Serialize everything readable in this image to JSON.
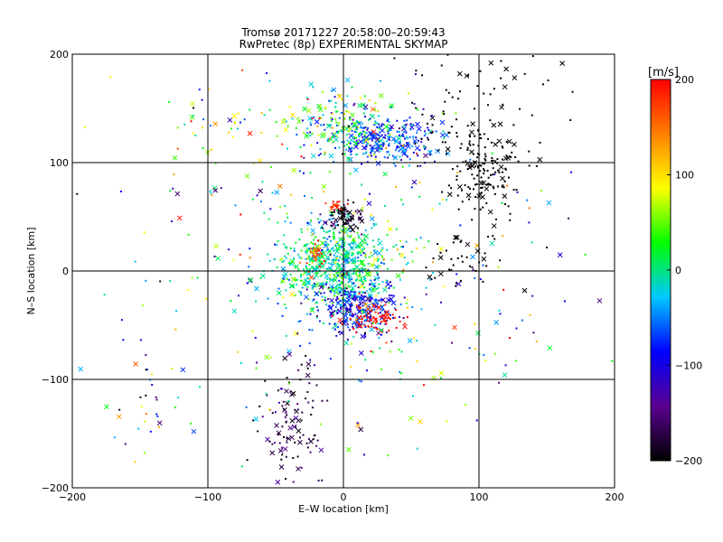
{
  "chart_data": {
    "type": "scatter",
    "title": "Tromsø 20171227 20:58:00–20:59:43",
    "subtitle": "RwPretec (8p) EXPERIMENTAL SKYMAP",
    "xlabel": "E–W location [km]",
    "ylabel": "N–S location [km]",
    "xlim": [
      -200,
      200
    ],
    "ylim": [
      -200,
      200
    ],
    "xticks": [
      -200,
      -100,
      0,
      100,
      200
    ],
    "yticks": [
      -200,
      -100,
      0,
      100,
      200
    ],
    "grid": true,
    "colorbar": {
      "title": "[m/s]",
      "range": [
        -200,
        200
      ],
      "ticks": [
        -200,
        -100,
        0,
        100,
        200
      ],
      "colormap": [
        "#000000",
        "#5a0090",
        "#0000ff",
        "#00c8ff",
        "#00ff00",
        "#ffff00",
        "#ff8000",
        "#ff0000"
      ]
    },
    "markers": {
      "dot": "point",
      "cross": "x"
    },
    "clusters": [
      {
        "cx": -5,
        "cy": 5,
        "sx": 20,
        "sy": 20,
        "n": 650,
        "vel": 0,
        "vsd": 35
      },
      {
        "cx": 30,
        "cy": 120,
        "sx": 22,
        "sy": 12,
        "n": 280,
        "vel": -70,
        "vsd": 35
      },
      {
        "cx": 0,
        "cy": 135,
        "sx": 18,
        "sy": 15,
        "n": 180,
        "vel": 20,
        "vsd": 60
      },
      {
        "cx": 10,
        "cy": -35,
        "sx": 15,
        "sy": 12,
        "n": 260,
        "vel": -95,
        "vsd": 35
      },
      {
        "cx": 22,
        "cy": -45,
        "sx": 9,
        "sy": 6,
        "n": 70,
        "vel": 195,
        "vsd": 10
      },
      {
        "cx": 105,
        "cy": 95,
        "sx": 15,
        "sy": 22,
        "n": 170,
        "vel": -200,
        "vsd": 0
      },
      {
        "cx": 90,
        "cy": 10,
        "sx": 15,
        "sy": 15,
        "n": 40,
        "vel": -200,
        "vsd": 0
      },
      {
        "cx": -38,
        "cy": -140,
        "sx": 12,
        "sy": 30,
        "n": 110,
        "vel": -170,
        "vsd": 25
      },
      {
        "cx": -150,
        "cy": -110,
        "sx": 14,
        "sy": 25,
        "n": 25,
        "vel": -100,
        "vsd": 120
      },
      {
        "cx": 0,
        "cy": 50,
        "sx": 8,
        "sy": 6,
        "n": 70,
        "vel": -190,
        "vsd": 30
      },
      {
        "cx": -5,
        "cy": 60,
        "sx": 3,
        "sy": 2,
        "n": 18,
        "vel": 180,
        "vsd": 15
      },
      {
        "cx": -20,
        "cy": 15,
        "sx": 5,
        "sy": 8,
        "n": 30,
        "vel": 150,
        "vsd": 40
      },
      {
        "cx": 0,
        "cy": 0,
        "sx": 80,
        "sy": 90,
        "n": 380,
        "vel": 0,
        "vsd": 90
      },
      {
        "cx": 100,
        "cy": 160,
        "sx": 40,
        "sy": 25,
        "n": 60,
        "vel": -200,
        "vsd": 0
      },
      {
        "cx": -90,
        "cy": 140,
        "sx": 30,
        "sy": 20,
        "n": 40,
        "vel": 60,
        "vsd": 100
      }
    ]
  }
}
